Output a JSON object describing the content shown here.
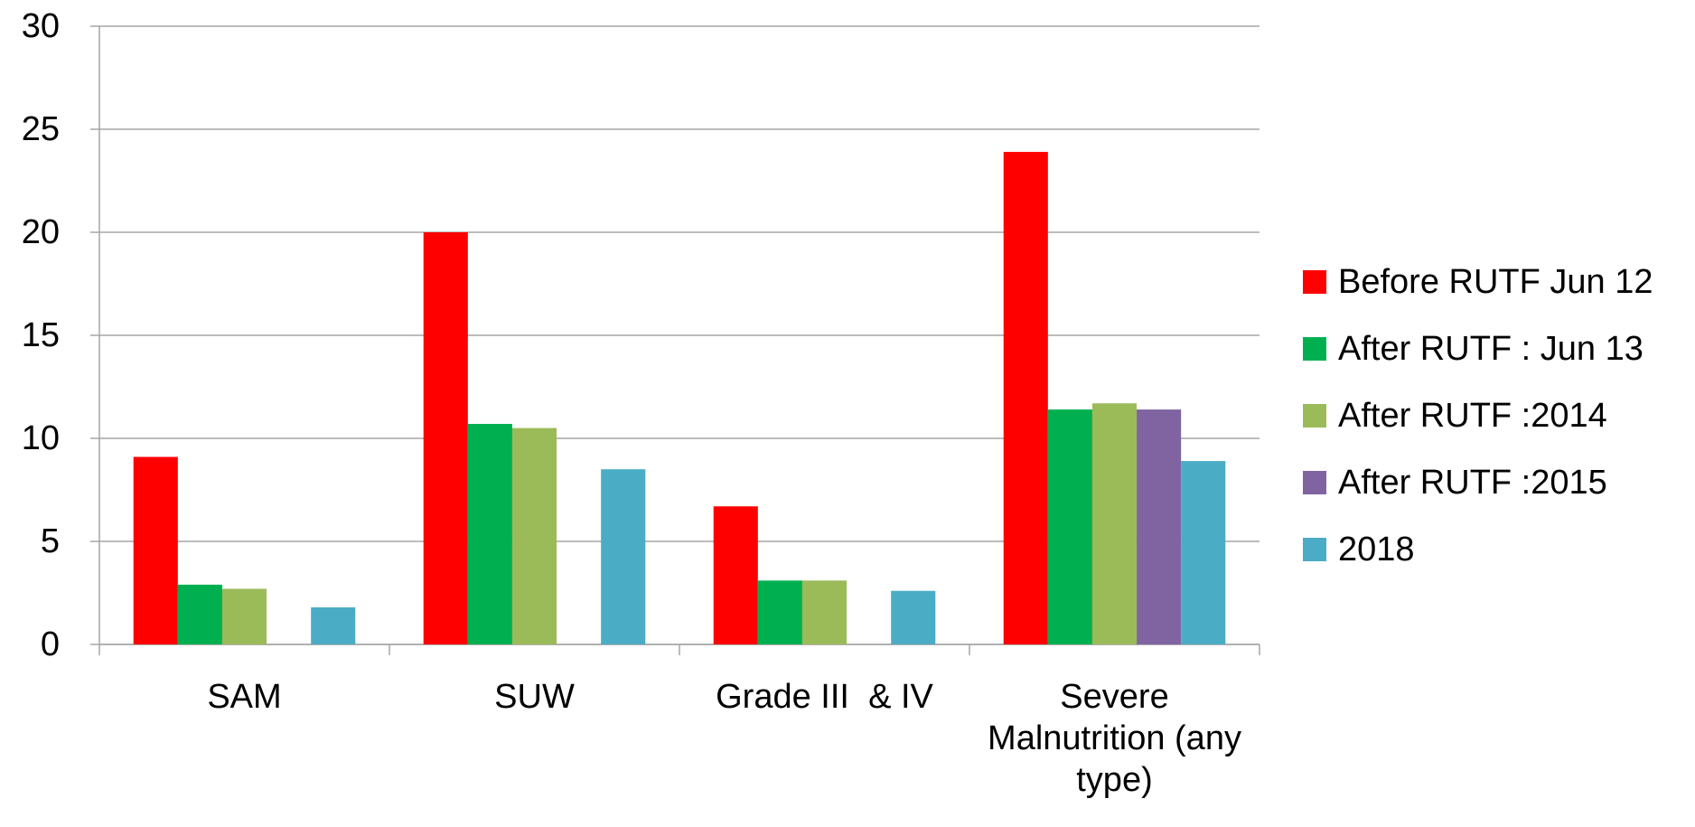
{
  "chart_data": {
    "type": "bar",
    "categories": [
      "SAM",
      "SUW",
      "Grade III  & IV",
      "Severe Malnutrition (any type)"
    ],
    "series": [
      {
        "name": "Before RUTF Jun 12",
        "color": "#ff0000",
        "values": [
          9.1,
          20,
          6.7,
          23.9
        ]
      },
      {
        "name": "After RUTF : Jun 13",
        "color": "#00b050",
        "values": [
          2.9,
          10.7,
          3.1,
          11.4
        ]
      },
      {
        "name": "After RUTF :2014",
        "color": "#9bbb59",
        "values": [
          2.7,
          10.5,
          3.1,
          11.7
        ]
      },
      {
        "name": "After RUTF :2015",
        "color": "#8064a2",
        "values": [
          null,
          null,
          null,
          11.4
        ]
      },
      {
        "name": "2018",
        "color": "#4bacc6",
        "values": [
          1.8,
          8.5,
          2.6,
          8.9
        ]
      }
    ],
    "ylim": [
      0,
      30
    ],
    "yticks": [
      0,
      5,
      10,
      15,
      20,
      25,
      30
    ],
    "grid": true,
    "legend": "right"
  }
}
